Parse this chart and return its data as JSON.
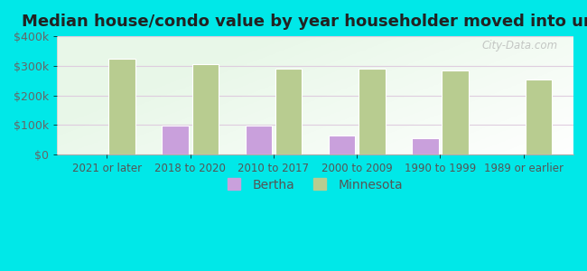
{
  "title": "Median house/condo value by year householder moved into unit",
  "categories": [
    "2021 or later",
    "2018 to 2020",
    "2010 to 2017",
    "2000 to 2009",
    "1990 to 1999",
    "1989 or earlier"
  ],
  "bertha_values": [
    null,
    97000,
    97000,
    63000,
    55000,
    null
  ],
  "minnesota_values": [
    325000,
    305000,
    290000,
    290000,
    285000,
    253000
  ],
  "bertha_color": "#c9a0dc",
  "minnesota_color": "#b8cc90",
  "background_color": "#00e8e8",
  "ylim": [
    0,
    400000
  ],
  "yticks": [
    0,
    100000,
    200000,
    300000,
    400000
  ],
  "title_fontsize": 13,
  "legend_labels": [
    "Bertha",
    "Minnesota"
  ],
  "watermark": "City-Data.com",
  "bar_width": 0.32,
  "grid_color": "#ddc8dd",
  "grid_alpha": 0.9
}
